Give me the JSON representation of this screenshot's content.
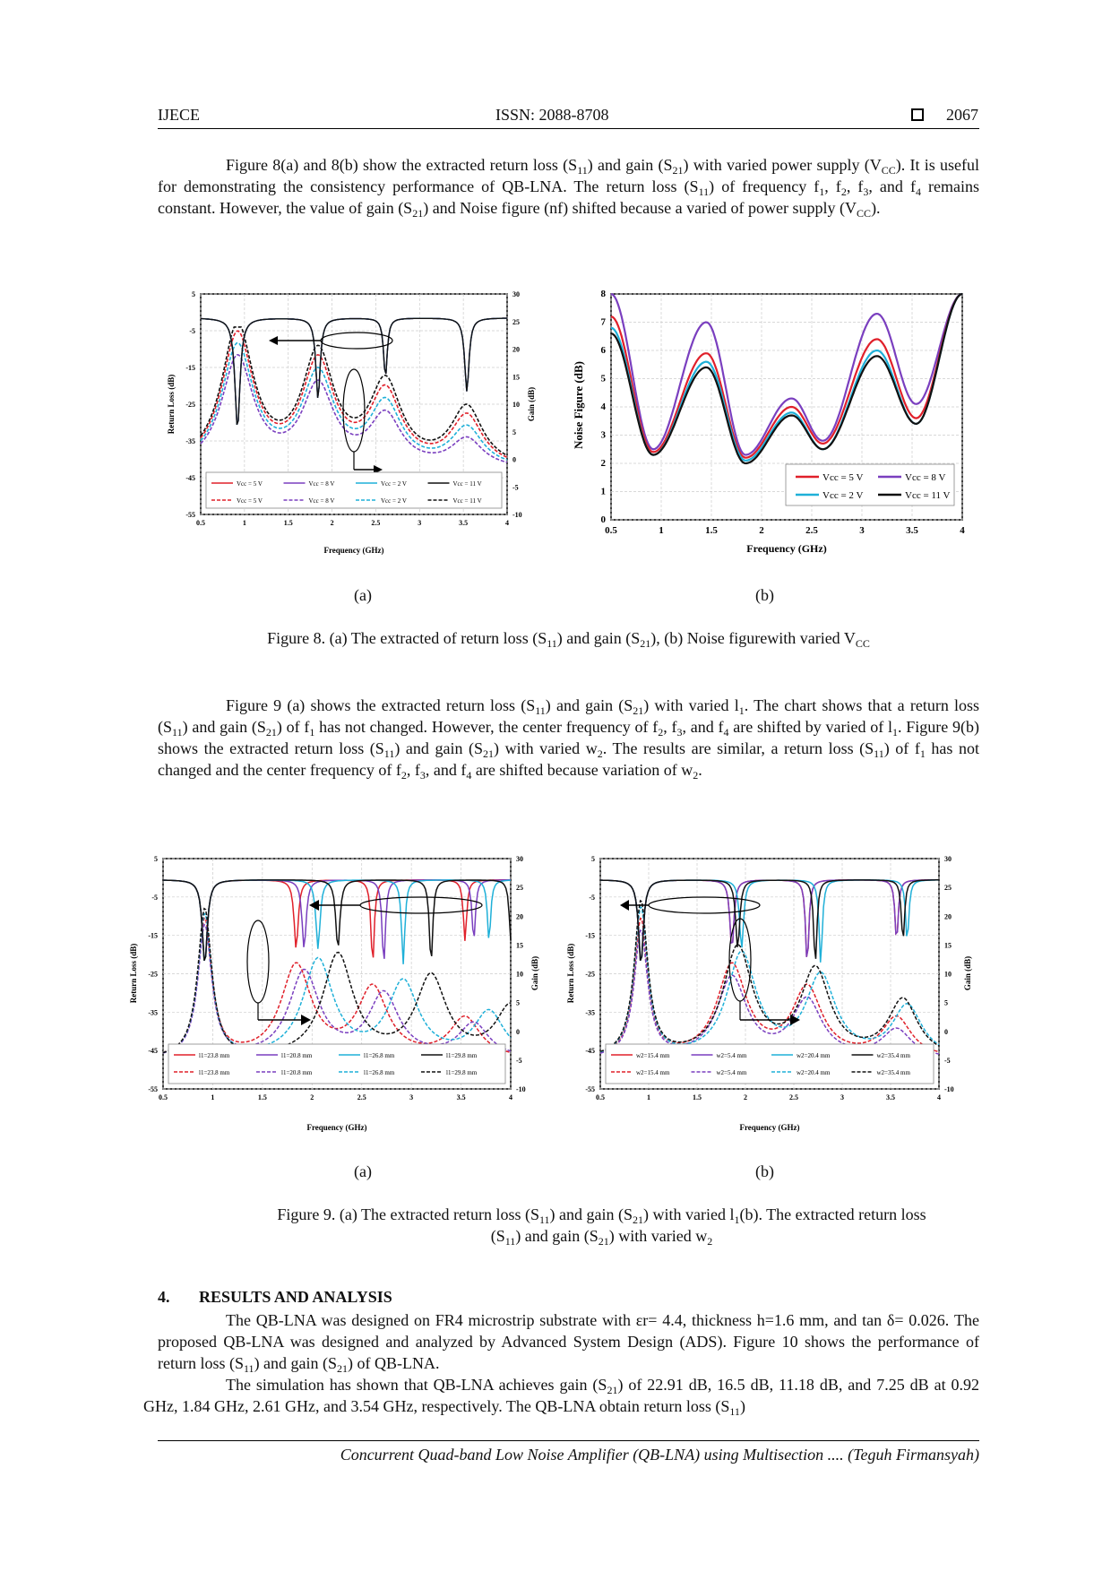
{
  "header": {
    "left": "IJECE",
    "center": "ISSN: 2088-8708",
    "right": "2067"
  },
  "para1": {
    "a": "Figure 8(a) and 8(b) show the extracted return loss (S",
    "b": ") and gain (S",
    "c": ") with varied power supply (V",
    "d": "). It is useful for demonstrating the consistency performance of QB-LNA. The return loss (S",
    "e": ") of frequency f",
    "f": ", f",
    "g": ", f",
    "h": ", and f",
    "i": " remains constant. However, the value of gain (S",
    "j": ") and Noise figure (nf) shifted because a varied of power supply (V",
    "k": ")."
  },
  "sub": {
    "s11": "11",
    "s21": "21",
    "cc": "CC",
    "n1": "1",
    "n2": "2",
    "n3": "3",
    "n4": "4"
  },
  "fig8": {
    "a_label": "(a)",
    "b_label": "(b)",
    "caption": {
      "a": "Figure 8. (a) The extracted of return loss (S",
      "b": ") and gain (S",
      "c": "), (b) Noise figurewith varied V"
    },
    "a": {
      "xlabel": "Frequency (GHz)",
      "ylabel": "Return Loss (dB)",
      "y2label": "Gain (dB)",
      "xticks": [
        "0.5",
        "1",
        "1.5",
        "2",
        "2.5",
        "3",
        "3.5",
        "4"
      ],
      "yticks": [
        "5",
        "-5",
        "-15",
        "-25",
        "-35",
        "-45",
        "-55"
      ],
      "y2ticks": [
        "30",
        "25",
        "20",
        "15",
        "10",
        "5",
        "0",
        "-5",
        "-10"
      ],
      "legend": [
        "Vcc = 5 V",
        "Vcc = 8 V",
        "Vcc = 2 V",
        "Vcc = 11 V"
      ]
    },
    "b": {
      "xlabel": "Frequency (GHz)",
      "ylabel": "Noise Figure (dB)",
      "xticks": [
        "0.5",
        "1",
        "1.5",
        "2",
        "2.5",
        "3",
        "3.5",
        "4"
      ],
      "yticks": [
        "8",
        "7",
        "6",
        "5",
        "4",
        "3",
        "2",
        "1",
        "0"
      ],
      "legend": [
        "Vcc = 5 V",
        "Vcc = 8 V",
        "Vcc = 2 V",
        "Vcc = 11 V"
      ]
    }
  },
  "para2": {
    "a": "Figure 9 (a) shows the extracted return loss (S",
    "b": ") and gain (S",
    "c": ") with varied l",
    "d": ". The chart shows that a return loss (S",
    "e": ") and gain (S",
    "f": ") of f",
    "g": " has not changed. However, the center frequency of f",
    "h": ", f",
    "i": ", and f",
    "j": " are shifted by varied of l",
    "k": ". Figure 9(b) shows the extracted return loss (S",
    "l": ") and gain (S",
    "m": ") with varied w",
    "n": ". The results are similar, a return loss (S",
    "o": ") of f",
    "p": " has not changed and the center frequency of f",
    "q": ", f",
    "r": ", and f",
    "s": " are shifted because variation of w",
    "t": "."
  },
  "fig9": {
    "a_label": "(a)",
    "b_label": "(b)",
    "caption": {
      "a": "Figure 9. (a) The extracted return loss (S",
      "b": ") and gain (S",
      "c": ") with varied l",
      "d": "(b). The extracted return loss",
      "e": "(S",
      "f": ") and gain (S",
      "g": ") with varied w"
    },
    "a": {
      "xlabel": "Frequency (GHz)",
      "ylabel": "Return Loss (dB)",
      "y2label": "Gain (dB)",
      "legend": [
        "l1=23.8 mm",
        "l1=20.8 mm",
        "l1=26.8 mm",
        "l1=29.8 mm"
      ]
    },
    "b": {
      "xlabel": "Frequency (GHz)",
      "ylabel": "Return Loss (dB)",
      "y2label": "Gain (dB)",
      "legend": [
        "w2=15.4 mm",
        "w2=5.4 mm",
        "w2=20.4 mm",
        "w2=35.4 mm"
      ]
    }
  },
  "section": {
    "num": "4.",
    "title": "RESULTS AND ANALYSIS"
  },
  "para3": {
    "a": "The QB-LNA was designed on FR4 microstrip substrate with εr= 4.4, thickness h=1.6 mm, and tan δ= 0.026. The proposed QB-LNA was designed and analyzed by Advanced System Design (ADS). Figure 10 shows the performance of return loss (S",
    "b": ") and gain (S",
    "c": ") of QB-LNA."
  },
  "para4": {
    "a": "The simulation has shown that QB-LNA achieves gain (S",
    "b": ") of 22.91 dB, 16.5 dB, 11.18 dB, and 7.25 dB at 0.92 GHz, 1.84 GHz, 2.61 GHz, and 3.54 GHz, respectively. The QB-LNA obtain return loss (S",
    "c": ")"
  },
  "footer": "Concurrent Quad-band Low Noise Amplifier (QB-LNA) using Multisection .... (Teguh Firmansyah)",
  "colors": {
    "red": "#e0202a",
    "purple": "#7a3fbf",
    "cyan": "#1fb0d8",
    "black": "#111111"
  },
  "chart_data": [
    {
      "type": "line",
      "title": "",
      "xlabel": "Frequency (GHz)",
      "ylabel": "Return Loss (dB)",
      "xlim": [
        0.5,
        4
      ],
      "ylim": [
        -55,
        5
      ],
      "y2lim": [
        -10,
        30
      ],
      "series": [
        {
          "name": "Vcc = 5 V"
        },
        {
          "name": "Vcc = 8 V"
        },
        {
          "name": "Vcc = 2 V"
        },
        {
          "name": "Vcc = 11 V"
        }
      ]
    },
    {
      "type": "line",
      "title": "",
      "xlabel": "Frequency (GHz)",
      "ylabel": "Noise Figure (dB)",
      "xlim": [
        0.5,
        4
      ],
      "ylim": [
        0,
        8
      ],
      "series": [
        {
          "name": "Vcc = 5 V",
          "x": [
            0.5,
            0.92,
            1.45,
            1.84,
            2.3,
            2.61,
            3.15,
            3.54,
            4
          ],
          "values": [
            7.2,
            2.4,
            5.9,
            2.2,
            4.0,
            2.7,
            6.4,
            3.6,
            8
          ]
        },
        {
          "name": "Vcc = 8 V",
          "x": [
            0.5,
            0.92,
            1.45,
            1.84,
            2.3,
            2.61,
            3.15,
            3.54,
            4
          ],
          "values": [
            8,
            2.5,
            7.0,
            2.3,
            4.3,
            2.8,
            7.3,
            4.1,
            8
          ]
        },
        {
          "name": "Vcc = 2 V",
          "x": [
            0.5,
            0.92,
            1.45,
            1.84,
            2.3,
            2.61,
            3.15,
            3.54,
            4
          ],
          "values": [
            6.8,
            2.3,
            5.6,
            2.1,
            3.8,
            2.5,
            6.0,
            3.4,
            8
          ]
        },
        {
          "name": "Vcc = 11 V",
          "x": [
            0.5,
            0.92,
            1.45,
            1.84,
            2.3,
            2.61,
            3.15,
            3.54,
            4
          ],
          "values": [
            6.6,
            2.3,
            5.4,
            2.0,
            3.7,
            2.5,
            5.8,
            3.4,
            8
          ]
        }
      ]
    },
    {
      "type": "line",
      "title": "",
      "xlabel": "Frequency (GHz)",
      "ylabel": "Return Loss (dB)",
      "xlim": [
        0.5,
        4
      ],
      "ylim": [
        -55,
        5
      ],
      "y2lim": [
        -10,
        30
      ],
      "series": [
        {
          "name": "l1=23.8 mm"
        },
        {
          "name": "l1=20.8 mm"
        },
        {
          "name": "l1=26.8 mm"
        },
        {
          "name": "l1=29.8 mm"
        }
      ]
    },
    {
      "type": "line",
      "title": "",
      "xlabel": "Frequency (GHz)",
      "ylabel": "Return Loss (dB)",
      "xlim": [
        0.5,
        4
      ],
      "ylim": [
        -55,
        5
      ],
      "y2lim": [
        -10,
        30
      ],
      "series": [
        {
          "name": "w2=15.4 mm"
        },
        {
          "name": "w2=5.4 mm"
        },
        {
          "name": "w2=20.4 mm"
        },
        {
          "name": "w2=35.4 mm"
        }
      ]
    }
  ]
}
